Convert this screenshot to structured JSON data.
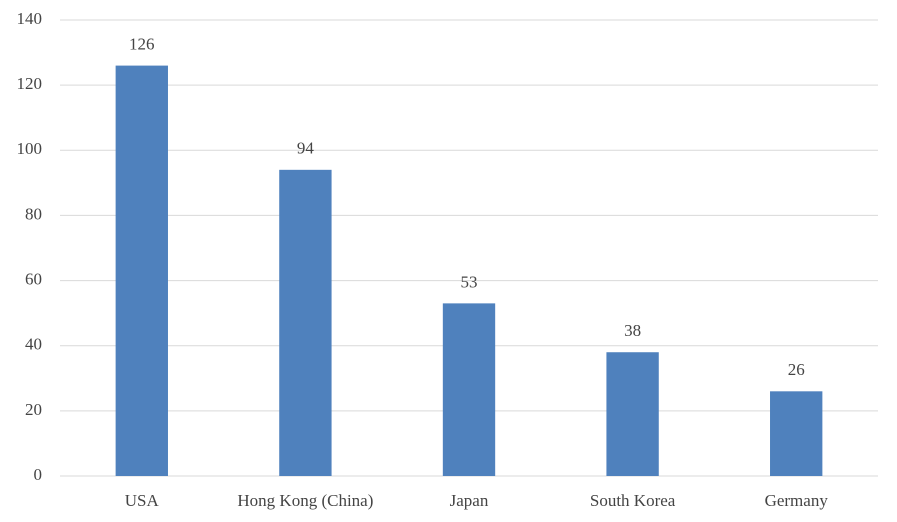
{
  "chart_data": {
    "type": "bar",
    "categories": [
      "USA",
      "Hong Kong (China)",
      "Japan",
      "South Korea",
      "Germany"
    ],
    "values": [
      126,
      94,
      53,
      38,
      26
    ],
    "color": "#4f81bd",
    "ylim": [
      0,
      140
    ],
    "yticks": [
      0,
      20,
      40,
      60,
      80,
      100,
      120,
      140
    ],
    "grid": true
  }
}
